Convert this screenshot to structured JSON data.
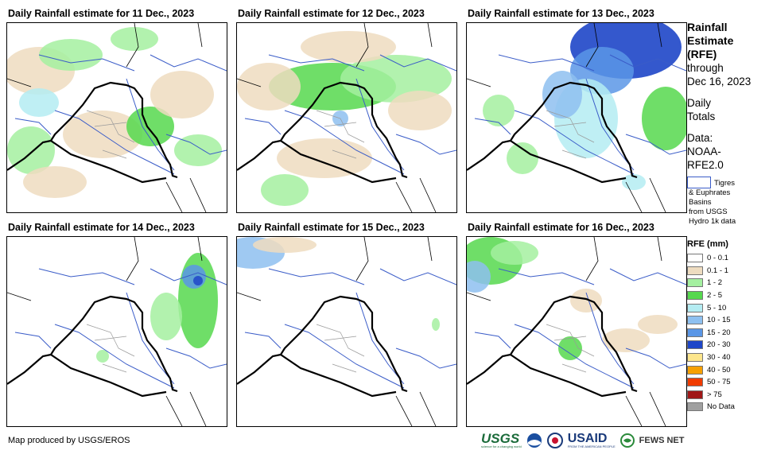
{
  "panels": [
    {
      "title": "Daily Rainfall estimate for 11 Dec., 2023"
    },
    {
      "title": "Daily Rainfall estimate for 12 Dec., 2023"
    },
    {
      "title": "Daily Rainfall estimate for 13 Dec., 2023"
    },
    {
      "title": "Daily Rainfall estimate for 14 Dec., 2023"
    },
    {
      "title": "Daily Rainfall estimate for 15 Dec., 2023"
    },
    {
      "title": "Daily Rainfall estimate for 16 Dec., 2023"
    }
  ],
  "sidebar": {
    "title_lines": [
      "Rainfall",
      "Estimate",
      "(RFE)"
    ],
    "through": "through",
    "date": "Dec 16, 2023",
    "daily": "Daily",
    "totals": "Totals",
    "data_label": "Data:",
    "data_src1": "NOAA-",
    "data_src2": "RFE2.0",
    "basins_lines": [
      "& Euphrates",
      "Basins",
      "from USGS",
      "Hydro 1k data"
    ],
    "basins_first": "Tigres",
    "legend_title": "RFE (mm)",
    "legend": [
      {
        "label": "0 - 0.1",
        "color": "#ffffff"
      },
      {
        "label": "0.1 - 1",
        "color": "#eedcc0"
      },
      {
        "label": "1 - 2",
        "color": "#a4f0a0"
      },
      {
        "label": "2 - 5",
        "color": "#56d84e"
      },
      {
        "label": "5 - 10",
        "color": "#b4ecf2"
      },
      {
        "label": "10 - 15",
        "color": "#8ec0f0"
      },
      {
        "label": "15 - 20",
        "color": "#5a96e6"
      },
      {
        "label": "20 - 30",
        "color": "#1e46c8"
      },
      {
        "label": "30 - 40",
        "color": "#fde68c"
      },
      {
        "label": "40 - 50",
        "color": "#f6a000"
      },
      {
        "label": "50 - 75",
        "color": "#f03c00"
      },
      {
        "label": "> 75",
        "color": "#a01818"
      },
      {
        "label": "No Data",
        "color": "#a0a0a0"
      }
    ]
  },
  "credit": "Map produced by USGS/EROS",
  "logos": {
    "usgs": "USGS",
    "usgs_tag": "science for a changing world",
    "usaid": "USAID",
    "usaid_tag": "FROM THE AMERICAN PEOPLE",
    "fews": "FEWS NET"
  }
}
